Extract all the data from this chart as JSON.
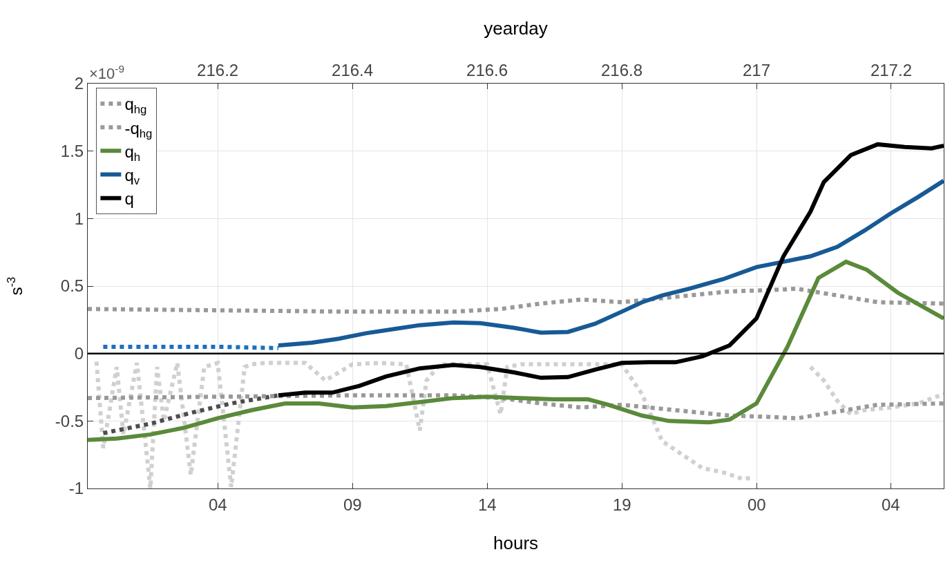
{
  "chart_data": {
    "type": "line",
    "xlabel": "yearday",
    "ylabel": "s$^{-3}$",
    "annotations": [
      "×10$^{-9}$",
      "04",
      "09",
      "14",
      "19",
      "00",
      "04",
      "hours"
    ],
    "xlim": [
      216.007,
      217.278
    ],
    "xticks": [
      216.2,
      216.4,
      216.6,
      216.8,
      217,
      217.2
    ],
    "ylim": [
      -1,
      2
    ],
    "yticks": [
      -1,
      -0.5,
      0,
      0.5,
      1,
      1.5,
      2
    ],
    "grid": true,
    "legend": "top left",
    "ref_lines": [
      {
        "axis": "y",
        "value": 0,
        "color": "#000000"
      }
    ],
    "series": [
      {
        "color": "#d0d0d0",
        "line_style": "dotted",
        "x": [
          216.02,
          216.03,
          216.05,
          216.06,
          216.08,
          216.1,
          216.11,
          216.12,
          216.14,
          216.16,
          216.18,
          216.2,
          216.22,
          216.24,
          216.25,
          216.27,
          216.3,
          216.33,
          216.36,
          216.4,
          216.44,
          216.48,
          216.5,
          216.51,
          216.53,
          216.56,
          216.6,
          216.62,
          216.63,
          216.65,
          216.7,
          216.75,
          216.78,
          216.8,
          216.83,
          216.86,
          216.89,
          216.92,
          216.95,
          216.98,
          216.995,
          217.05,
          217.08,
          217.1,
          217.12,
          217.14,
          217.16,
          217.2,
          217.24,
          217.278
        ],
        "values": [
          -0.06,
          -0.7,
          -0.1,
          -0.6,
          -0.07,
          -1.0,
          -0.1,
          -0.5,
          -0.07,
          -0.9,
          -0.1,
          -0.07,
          -0.99,
          -0.1,
          -0.08,
          -0.07,
          -0.07,
          -0.07,
          -0.2,
          -0.08,
          -0.07,
          -0.08,
          -0.57,
          -0.2,
          -0.08,
          -0.08,
          -0.08,
          -0.45,
          -0.1,
          -0.08,
          -0.08,
          -0.08,
          -0.08,
          -0.08,
          -0.3,
          -0.65,
          -0.75,
          -0.85,
          -0.88,
          -0.93,
          -0.92,
          null,
          -0.1,
          -0.2,
          -0.35,
          -0.45,
          -0.42,
          -0.4,
          -0.37,
          -0.3
        ]
      },
      {
        "name": "q$_{hg}$",
        "color": "#999999",
        "line_style": "dotted",
        "x": [
          216.007,
          216.2,
          216.4,
          216.55,
          216.62,
          216.68,
          216.74,
          216.8,
          216.88,
          216.96,
          217.02,
          217.06,
          217.12,
          217.18,
          217.278
        ],
        "values": [
          0.33,
          0.32,
          0.31,
          0.31,
          0.33,
          0.37,
          0.4,
          0.38,
          0.42,
          0.46,
          0.47,
          0.48,
          0.43,
          0.38,
          0.37
        ]
      },
      {
        "name": "-q$_{hg}$",
        "color": "#999999",
        "line_style": "dotted",
        "x": [
          216.007,
          216.2,
          216.4,
          216.55,
          216.62,
          216.68,
          216.74,
          216.8,
          216.88,
          216.96,
          217.02,
          217.06,
          217.12,
          217.18,
          217.278
        ],
        "values": [
          -0.33,
          -0.32,
          -0.31,
          -0.31,
          -0.33,
          -0.37,
          -0.4,
          -0.38,
          -0.42,
          -0.46,
          -0.47,
          -0.48,
          -0.43,
          -0.38,
          -0.37
        ]
      },
      {
        "name": "q$_{h}$",
        "color": "#5a8a3a",
        "line_style": "solid",
        "x": [
          216.007,
          216.05,
          216.1,
          216.15,
          216.2,
          216.25,
          216.3,
          216.35,
          216.4,
          216.45,
          216.5,
          216.55,
          216.6,
          216.65,
          216.7,
          216.75,
          216.78,
          216.83,
          216.87,
          216.93,
          216.96,
          217.0,
          217.046,
          217.092,
          217.133,
          217.164,
          217.21,
          217.278
        ],
        "values": [
          -0.64,
          -0.63,
          -0.6,
          -0.55,
          -0.48,
          -0.42,
          -0.37,
          -0.37,
          -0.4,
          -0.39,
          -0.36,
          -0.33,
          -0.32,
          -0.33,
          -0.34,
          -0.34,
          -0.38,
          -0.46,
          -0.5,
          -0.51,
          -0.49,
          -0.37,
          0.05,
          0.56,
          0.68,
          0.62,
          0.45,
          0.26
        ]
      },
      {
        "color": "#1c70c0",
        "line_style": "dotted",
        "x": [
          216.03,
          216.1,
          216.2,
          216.29
        ],
        "values": [
          0.05,
          0.05,
          0.05,
          0.04
        ]
      },
      {
        "name": "q$_{v}$",
        "color": "#175a96",
        "line_style": "solid",
        "x": [
          216.29,
          216.34,
          216.38,
          216.42,
          216.46,
          216.5,
          216.55,
          216.59,
          216.64,
          216.68,
          216.72,
          216.76,
          216.8,
          216.83,
          216.86,
          216.9,
          216.95,
          217.0,
          217.04,
          217.08,
          217.12,
          217.16,
          217.2,
          217.24,
          217.278
        ],
        "values": [
          0.06,
          0.08,
          0.11,
          0.15,
          0.18,
          0.21,
          0.23,
          0.225,
          0.19,
          0.155,
          0.16,
          0.22,
          0.31,
          0.38,
          0.43,
          0.48,
          0.55,
          0.64,
          0.68,
          0.72,
          0.79,
          0.91,
          1.04,
          1.16,
          1.28
        ]
      },
      {
        "color": "#4d4d4d",
        "line_style": "dotted",
        "x": [
          216.03,
          216.1,
          216.16,
          216.22,
          216.29
        ],
        "values": [
          -0.59,
          -0.52,
          -0.44,
          -0.37,
          -0.31
        ]
      },
      {
        "name": "q",
        "color": "#000000",
        "line_style": "solid",
        "x": [
          216.29,
          216.33,
          216.37,
          216.41,
          216.45,
          216.5,
          216.55,
          216.59,
          216.64,
          216.68,
          216.72,
          216.76,
          216.8,
          216.84,
          216.88,
          216.92,
          216.96,
          217.0,
          217.04,
          217.08,
          217.1,
          217.14,
          217.18,
          217.22,
          217.26,
          217.278
        ],
        "values": [
          -0.31,
          -0.29,
          -0.29,
          -0.24,
          -0.17,
          -0.11,
          -0.085,
          -0.1,
          -0.14,
          -0.18,
          -0.175,
          -0.12,
          -0.07,
          -0.065,
          -0.065,
          -0.02,
          0.06,
          0.26,
          0.72,
          1.05,
          1.27,
          1.47,
          1.55,
          1.53,
          1.52,
          1.54
        ]
      }
    ]
  }
}
